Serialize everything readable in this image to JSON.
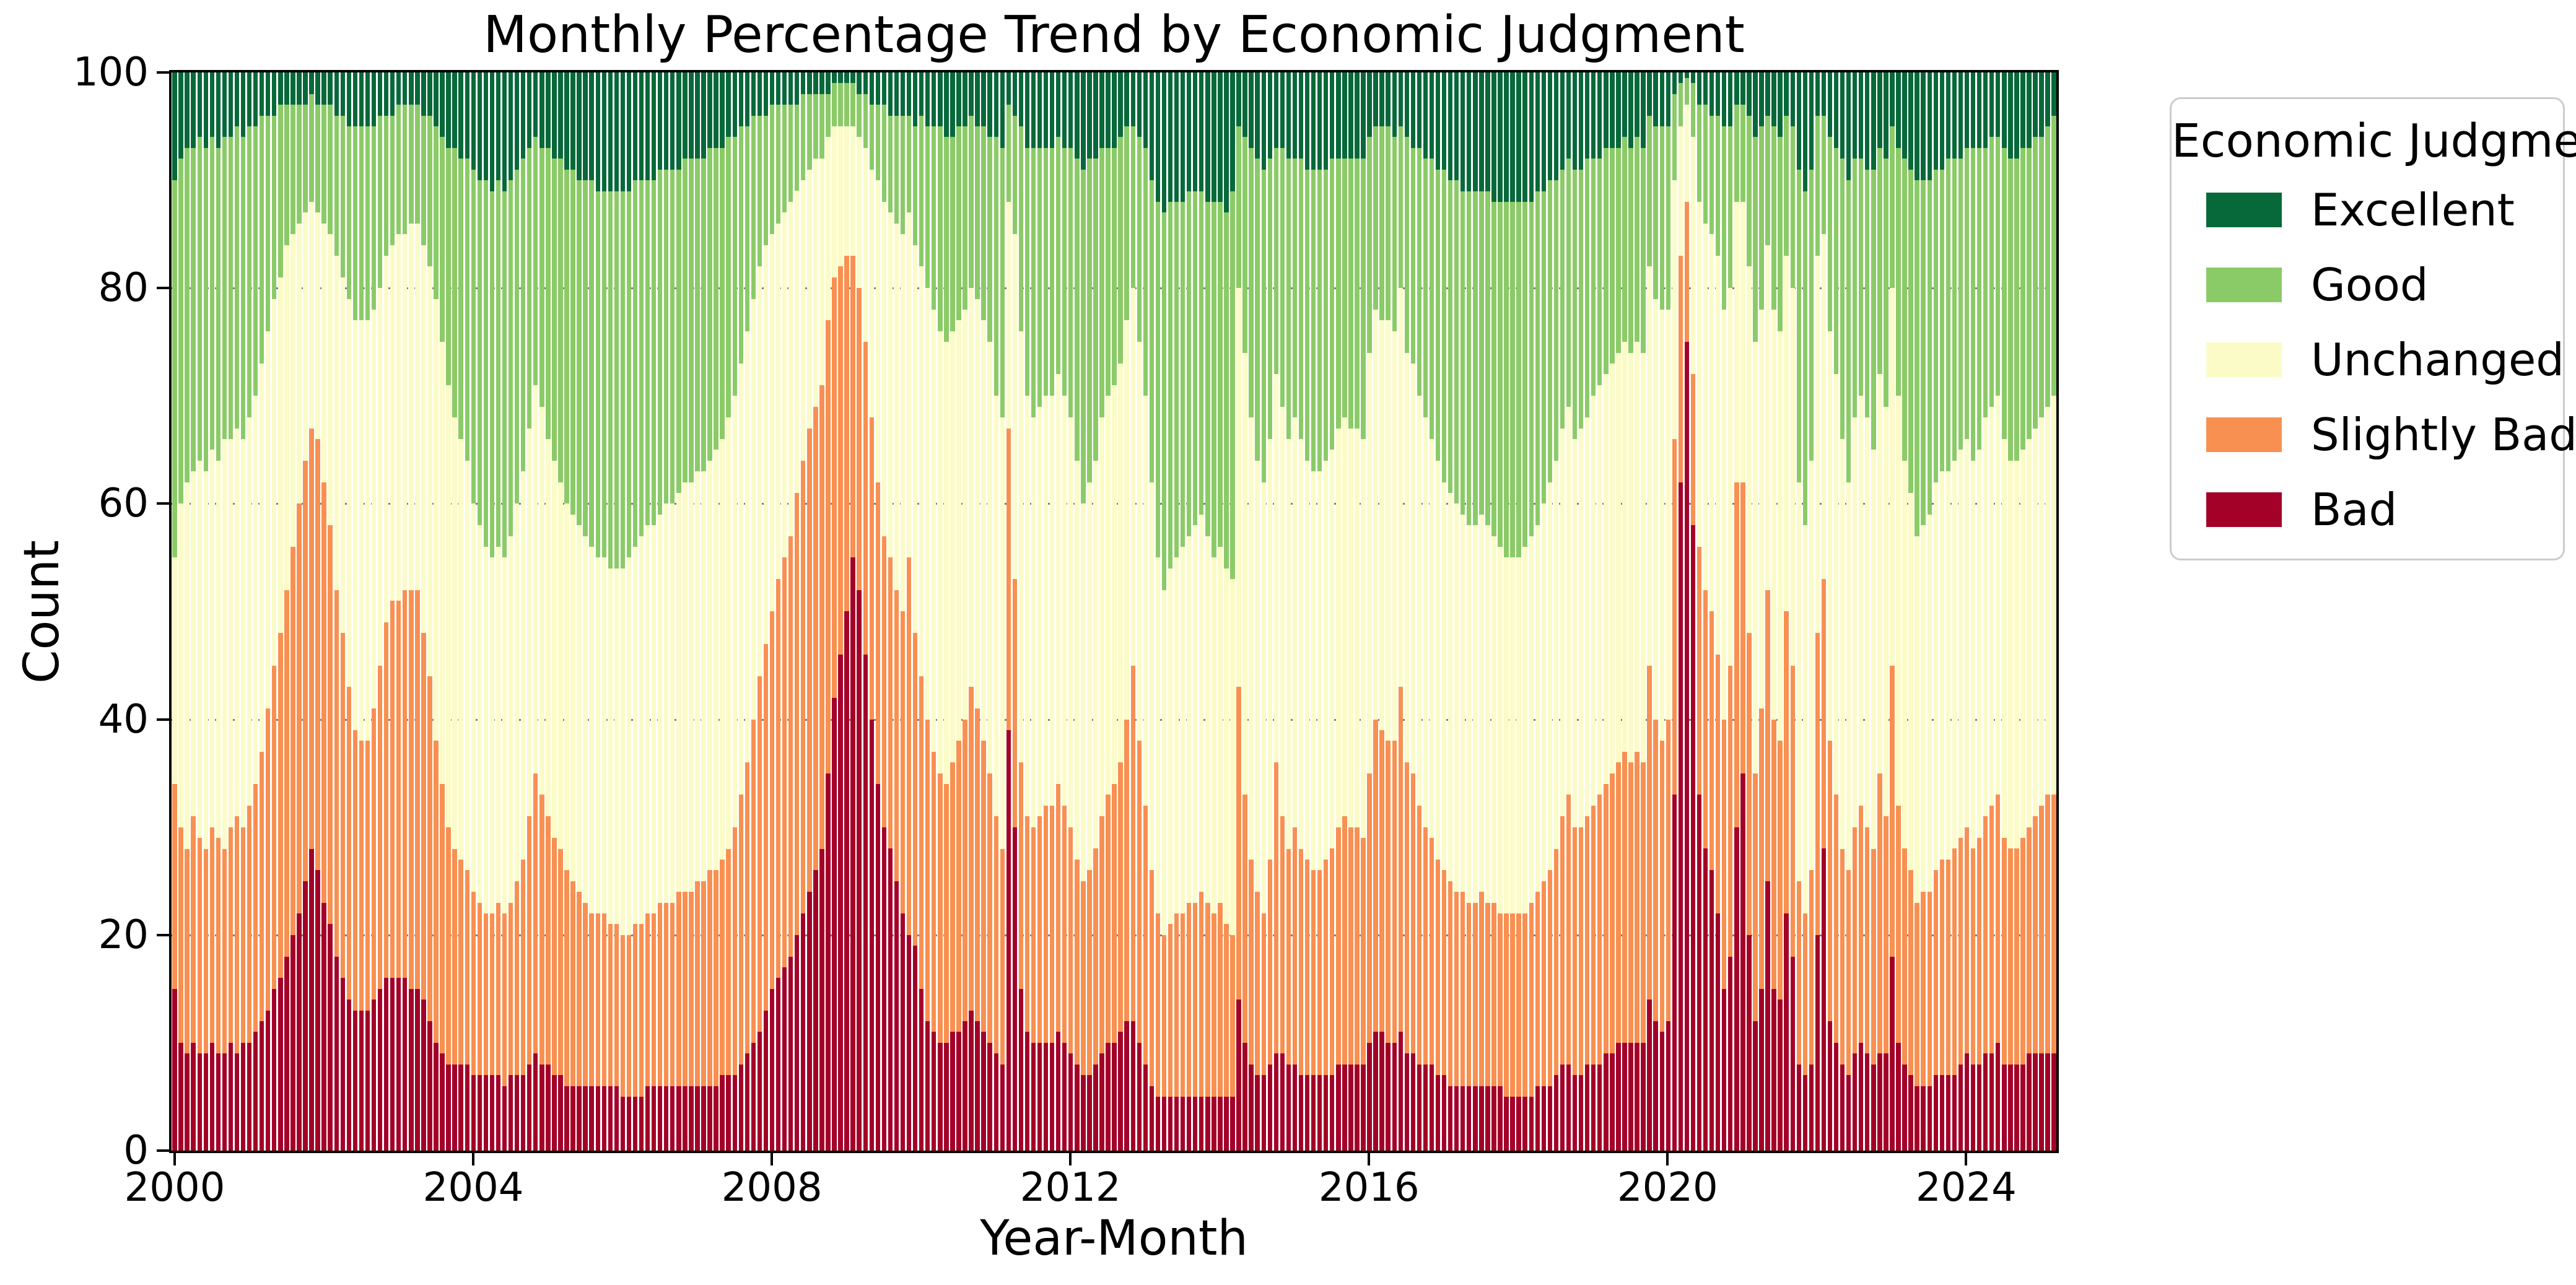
{
  "title": "Monthly Percentage Trend by Economic Judgment",
  "axes": {
    "xlabel": "Year-Month",
    "ylabel": "Count",
    "yticks": [
      0,
      20,
      40,
      60,
      80,
      100
    ],
    "grid_y": [
      20,
      40,
      60,
      80
    ],
    "xticks": [
      {
        "label": "2000",
        "month_index": 0
      },
      {
        "label": "2004",
        "month_index": 48
      },
      {
        "label": "2008",
        "month_index": 96
      },
      {
        "label": "2012",
        "month_index": 144
      },
      {
        "label": "2016",
        "month_index": 192
      },
      {
        "label": "2020",
        "month_index": 240
      },
      {
        "label": "2024",
        "month_index": 288
      }
    ]
  },
  "legend": {
    "title": "Economic Judgment",
    "entries": [
      {
        "label": "Excellent",
        "color": "#07693A"
      },
      {
        "label": "Good",
        "color": "#8BCB67"
      },
      {
        "label": "Unchanged",
        "color": "#FBFBC8"
      },
      {
        "label": "Slightly Bad",
        "color": "#F89051"
      },
      {
        "label": "Bad",
        "color": "#A40129"
      }
    ]
  },
  "chart_data": {
    "type": "bar",
    "stacked": true,
    "normalized_percent": true,
    "title": "Monthly Percentage Trend by Economic Judgment",
    "xlabel": "Year-Month",
    "ylabel": "Count",
    "ylim": [
      0,
      100
    ],
    "x_start": "2000-01",
    "x_end": "2025-03",
    "n_months": 303,
    "grid": "dotted horizontal at 20/40/60/80",
    "legend_position": "upper right, outside axes",
    "series_order_bottom_to_top": [
      "Bad",
      "Slightly Bad",
      "Unchanged",
      "Good",
      "Excellent"
    ],
    "note": "cumulative_tops gives, per month, the stacked cumulative top (percent 0-100) of each series from the bottom: Bad top, Slightly Bad top, Unchanged top, Good top; Excellent always tops out at 100. Segment value = difference from previous boundary.",
    "cumulative_tops": {
      "Bad": [
        15,
        10,
        9,
        10,
        9,
        9,
        10,
        9,
        9,
        10,
        9,
        10,
        10,
        11,
        12,
        13,
        15,
        16,
        18,
        20,
        22,
        25,
        28,
        26,
        23,
        21,
        18,
        16,
        14,
        13,
        13,
        13,
        14,
        15,
        16,
        16,
        16,
        16,
        15,
        15,
        14,
        12,
        10,
        9,
        8,
        8,
        8,
        8,
        7,
        7,
        7,
        7,
        7,
        6,
        7,
        7,
        7,
        8,
        9,
        8,
        8,
        7,
        7,
        6,
        6,
        6,
        6,
        6,
        6,
        6,
        6,
        6,
        5,
        5,
        5,
        5,
        6,
        6,
        6,
        6,
        6,
        6,
        6,
        6,
        6,
        6,
        6,
        6,
        7,
        7,
        7,
        8,
        9,
        10,
        11,
        13,
        15,
        16,
        17,
        18,
        20,
        22,
        24,
        26,
        28,
        35,
        42,
        46,
        50,
        55,
        52,
        46,
        40,
        34,
        30,
        28,
        25,
        22,
        20,
        19,
        15,
        12,
        11,
        10,
        10,
        11,
        11,
        12,
        13,
        12,
        11,
        10,
        9,
        8,
        39,
        30,
        15,
        11,
        10,
        10,
        10,
        10,
        11,
        10,
        9,
        8,
        7,
        7,
        8,
        9,
        10,
        10,
        11,
        12,
        12,
        10,
        8,
        6,
        5,
        5,
        5,
        5,
        5,
        5,
        5,
        5,
        5,
        5,
        5,
        5,
        5,
        14,
        10,
        8,
        7,
        7,
        8,
        9,
        9,
        8,
        8,
        7,
        7,
        7,
        7,
        7,
        7,
        8,
        8,
        8,
        8,
        8,
        10,
        11,
        11,
        10,
        10,
        11,
        9,
        9,
        8,
        8,
        8,
        7,
        7,
        6,
        6,
        6,
        6,
        6,
        6,
        6,
        6,
        6,
        5,
        5,
        5,
        5,
        5,
        6,
        6,
        6,
        7,
        8,
        8,
        7,
        7,
        8,
        8,
        8,
        9,
        9,
        10,
        10,
        10,
        10,
        10,
        14,
        12,
        11,
        12,
        33,
        62,
        75,
        58,
        33,
        28,
        26,
        22,
        15,
        18,
        30,
        35,
        20,
        12,
        15,
        25,
        15,
        14,
        22,
        18,
        8,
        7,
        8,
        20,
        28,
        12,
        10,
        8,
        7,
        9,
        10,
        9,
        8,
        9,
        9,
        18,
        10,
        8,
        7,
        6,
        6,
        6,
        7,
        7,
        7,
        7,
        8,
        9,
        8,
        8,
        9,
        9,
        10,
        8,
        8,
        8,
        8,
        9,
        9,
        9,
        9,
        9
      ],
      "Slightly Bad": [
        34,
        30,
        28,
        31,
        29,
        28,
        30,
        29,
        28,
        30,
        31,
        30,
        32,
        34,
        37,
        41,
        45,
        48,
        52,
        56,
        60,
        64,
        67,
        66,
        62,
        58,
        52,
        48,
        43,
        39,
        38,
        38,
        41,
        45,
        49,
        51,
        51,
        52,
        52,
        52,
        48,
        44,
        38,
        34,
        30,
        28,
        27,
        26,
        24,
        23,
        22,
        22,
        23,
        22,
        23,
        25,
        27,
        31,
        35,
        33,
        31,
        29,
        28,
        26,
        25,
        24,
        23,
        22,
        22,
        22,
        21,
        21,
        20,
        20,
        21,
        21,
        22,
        22,
        23,
        23,
        23,
        24,
        24,
        24,
        25,
        25,
        26,
        26,
        27,
        28,
        30,
        33,
        36,
        40,
        44,
        47,
        50,
        53,
        55,
        57,
        61,
        64,
        67,
        69,
        71,
        77,
        81,
        82,
        83,
        83,
        80,
        75,
        68,
        62,
        57,
        55,
        52,
        50,
        55,
        48,
        44,
        40,
        37,
        35,
        34,
        36,
        38,
        40,
        43,
        41,
        38,
        35,
        31,
        28,
        67,
        53,
        36,
        31,
        30,
        31,
        32,
        32,
        34,
        32,
        30,
        27,
        25,
        26,
        28,
        31,
        33,
        34,
        36,
        40,
        45,
        38,
        32,
        26,
        22,
        20,
        21,
        22,
        22,
        23,
        23,
        24,
        23,
        22,
        23,
        21,
        20,
        43,
        33,
        27,
        24,
        22,
        27,
        36,
        31,
        28,
        30,
        28,
        27,
        26,
        26,
        27,
        28,
        30,
        31,
        30,
        30,
        29,
        35,
        40,
        39,
        38,
        38,
        43,
        36,
        35,
        32,
        30,
        29,
        27,
        26,
        25,
        24,
        24,
        23,
        23,
        24,
        23,
        23,
        22,
        22,
        22,
        22,
        22,
        23,
        24,
        25,
        26,
        28,
        31,
        33,
        30,
        30,
        31,
        32,
        33,
        34,
        35,
        36,
        37,
        36,
        37,
        36,
        45,
        40,
        38,
        40,
        66,
        83,
        88,
        72,
        56,
        52,
        50,
        46,
        40,
        45,
        62,
        62,
        48,
        35,
        41,
        52,
        40,
        38,
        50,
        45,
        25,
        22,
        26,
        48,
        53,
        38,
        33,
        28,
        26,
        30,
        32,
        30,
        28,
        35,
        31,
        45,
        32,
        28,
        26,
        23,
        24,
        24,
        26,
        27,
        27,
        28,
        29,
        30,
        28,
        29,
        31,
        32,
        33,
        29,
        28,
        28,
        29,
        30,
        31,
        32,
        33,
        33
      ],
      "Unchanged": [
        55,
        60,
        62,
        63,
        64,
        63,
        65,
        64,
        66,
        66,
        67,
        66,
        68,
        70,
        73,
        76,
        79,
        81,
        84,
        85,
        86,
        87,
        88,
        87,
        86,
        85,
        83,
        81,
        79,
        77,
        77,
        77,
        78,
        80,
        83,
        84,
        85,
        85,
        86,
        86,
        84,
        82,
        79,
        75,
        71,
        68,
        66,
        64,
        60,
        58,
        56,
        55,
        56,
        55,
        57,
        60,
        63,
        67,
        71,
        69,
        66,
        64,
        62,
        60,
        59,
        58,
        57,
        56,
        55,
        55,
        54,
        54,
        54,
        55,
        56,
        57,
        58,
        58,
        59,
        60,
        60,
        61,
        62,
        62,
        63,
        63,
        64,
        65,
        66,
        68,
        70,
        73,
        76,
        79,
        82,
        84,
        85,
        86,
        87,
        88,
        89,
        90,
        91,
        92,
        92,
        94,
        95,
        95,
        95,
        95,
        94,
        93,
        91,
        90,
        88,
        87,
        86,
        85,
        87,
        84,
        82,
        80,
        78,
        76,
        75,
        76,
        77,
        78,
        80,
        79,
        77,
        75,
        70,
        68,
        88,
        85,
        76,
        70,
        68,
        69,
        70,
        70,
        72,
        70,
        68,
        64,
        60,
        62,
        64,
        68,
        70,
        71,
        73,
        77,
        80,
        75,
        70,
        62,
        55,
        52,
        54,
        55,
        56,
        57,
        58,
        59,
        57,
        55,
        56,
        54,
        53,
        80,
        74,
        68,
        64,
        62,
        66,
        72,
        69,
        66,
        68,
        66,
        64,
        63,
        63,
        64,
        65,
        67,
        68,
        67,
        67,
        66,
        74,
        78,
        77,
        77,
        76,
        80,
        74,
        73,
        70,
        68,
        66,
        64,
        62,
        61,
        60,
        59,
        58,
        58,
        59,
        58,
        57,
        56,
        55,
        55,
        55,
        56,
        57,
        58,
        60,
        62,
        64,
        67,
        69,
        66,
        67,
        68,
        70,
        71,
        72,
        73,
        74,
        75,
        74,
        75,
        74,
        82,
        79,
        78,
        78,
        90,
        95,
        97,
        94,
        88,
        86,
        85,
        83,
        78,
        80,
        88,
        88,
        82,
        75,
        78,
        84,
        78,
        76,
        83,
        80,
        62,
        58,
        64,
        83,
        85,
        76,
        72,
        66,
        62,
        68,
        70,
        68,
        65,
        72,
        69,
        80,
        70,
        64,
        61,
        57,
        58,
        59,
        62,
        63,
        63,
        64,
        65,
        66,
        64,
        65,
        68,
        69,
        70,
        66,
        64,
        64,
        65,
        66,
        67,
        68,
        69,
        70
      ],
      "Good": [
        90,
        92,
        93,
        93,
        94,
        93,
        94,
        93,
        94,
        94,
        95,
        94,
        95,
        95,
        96,
        96,
        96,
        97,
        97,
        97,
        97,
        97,
        98,
        97,
        97,
        97,
        96,
        96,
        95,
        95,
        95,
        95,
        95,
        96,
        96,
        96,
        97,
        97,
        97,
        97,
        96,
        96,
        95,
        94,
        93,
        93,
        92,
        92,
        91,
        90,
        90,
        89,
        90,
        89,
        90,
        91,
        92,
        93,
        94,
        93,
        93,
        92,
        92,
        91,
        91,
        90,
        90,
        90,
        89,
        89,
        89,
        89,
        89,
        89,
        90,
        90,
        90,
        90,
        91,
        91,
        91,
        91,
        92,
        92,
        92,
        92,
        93,
        93,
        93,
        94,
        94,
        95,
        95,
        96,
        96,
        96,
        97,
        97,
        97,
        97,
        97,
        98,
        98,
        98,
        98,
        98,
        99,
        99,
        99,
        99,
        98,
        98,
        97,
        97,
        97,
        96,
        96,
        96,
        96,
        95,
        96,
        95,
        95,
        95,
        94,
        94,
        95,
        95,
        96,
        95,
        95,
        94,
        94,
        93,
        97,
        96,
        95,
        93,
        93,
        93,
        93,
        93,
        94,
        93,
        93,
        92,
        91,
        92,
        92,
        93,
        93,
        93,
        94,
        95,
        95,
        94,
        93,
        90,
        88,
        87,
        88,
        88,
        88,
        89,
        89,
        89,
        88,
        88,
        88,
        87,
        89,
        95,
        94,
        93,
        92,
        91,
        92,
        93,
        93,
        92,
        92,
        92,
        91,
        91,
        91,
        91,
        92,
        92,
        92,
        92,
        92,
        92,
        94,
        95,
        95,
        95,
        94,
        95,
        94,
        93,
        93,
        92,
        92,
        91,
        91,
        90,
        90,
        89,
        89,
        89,
        89,
        89,
        88,
        88,
        88,
        88,
        88,
        88,
        88,
        89,
        89,
        90,
        90,
        91,
        92,
        91,
        91,
        92,
        92,
        92,
        93,
        93,
        93,
        94,
        93,
        94,
        93,
        96,
        95,
        95,
        95,
        98,
        99,
        99.5,
        99,
        97,
        97,
        96,
        96,
        95,
        95,
        97,
        97,
        96,
        94,
        95,
        96,
        95,
        94,
        96,
        95,
        91,
        89,
        91,
        96,
        96,
        94,
        93,
        92,
        90,
        92,
        92,
        91,
        91,
        93,
        92,
        95,
        93,
        92,
        91,
        90,
        90,
        90,
        91,
        91,
        92,
        92,
        92,
        93,
        93,
        93,
        93,
        94,
        94,
        93,
        92,
        92,
        93,
        93,
        94,
        94,
        95,
        96
      ]
    }
  }
}
